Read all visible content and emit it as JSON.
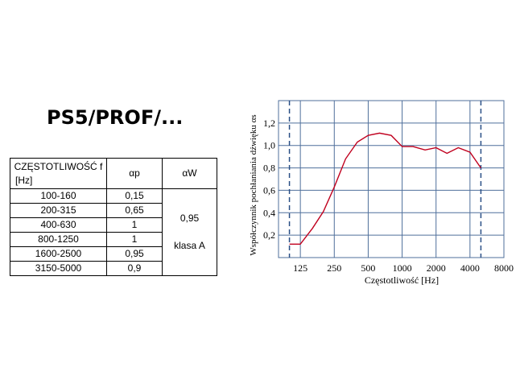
{
  "title": "PS5/PROF/...",
  "table": {
    "headers": {
      "freq_line1": "CZĘSTOTLIWOŚĆ f",
      "freq_line2": "[Hz]",
      "alpha_p": "αp",
      "alpha_w": "αW"
    },
    "rows": [
      {
        "freq": "100-160",
        "alpha_p": "0,15"
      },
      {
        "freq": "200-315",
        "alpha_p": "0,65"
      },
      {
        "freq": "400-630",
        "alpha_p": "1"
      },
      {
        "freq": "800-1250",
        "alpha_p": "1"
      },
      {
        "freq": "1600-2500",
        "alpha_p": "0,95"
      },
      {
        "freq": "3150-5000",
        "alpha_p": "0,9"
      }
    ],
    "alpha_w_value": "0,95",
    "alpha_w_class": "klasa A"
  },
  "chart_data": {
    "type": "line",
    "xlabel": "Częstotliwość [Hz]",
    "ylabel": "Współczynnik pochłaniania dźwięku αs",
    "x_tick_labels": [
      "125",
      "250",
      "500",
      "1000",
      "2000",
      "4000",
      "8000"
    ],
    "y_tick_labels": [
      "0,2",
      "0,4",
      "0,6",
      "0,8",
      "1,0",
      "1,2"
    ],
    "x_tick_values": [
      125,
      250,
      500,
      1000,
      2000,
      4000,
      8000
    ],
    "y_tick_values": [
      0.2,
      0.4,
      0.6,
      0.8,
      1.0,
      1.2
    ],
    "xlim": [
      80,
      8000
    ],
    "ylim": [
      0,
      1.4
    ],
    "x_scale": "log",
    "grid": true,
    "dashed_verticals_hz": [
      100,
      5000
    ],
    "line_color": "#c0001e",
    "grid_color": "#4f6f9b",
    "x": [
      100,
      125,
      160,
      200,
      250,
      315,
      400,
      500,
      630,
      800,
      1000,
      1250,
      1600,
      2000,
      2500,
      3150,
      4000,
      5000
    ],
    "values": [
      0.12,
      0.12,
      0.26,
      0.41,
      0.63,
      0.88,
      1.03,
      1.09,
      1.11,
      1.09,
      0.99,
      0.99,
      0.96,
      0.98,
      0.93,
      0.98,
      0.94,
      0.8
    ]
  }
}
